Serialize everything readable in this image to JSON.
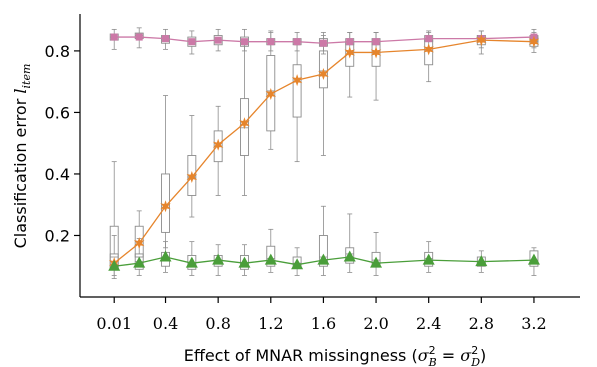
{
  "chart_data": {
    "type": "line",
    "title": "",
    "xlabel": "Effect of MNAR missingness (σ²_B = σ²_D)",
    "xlabel_parts": {
      "prefix": "Effect of MNAR missingness (",
      "sigma": "σ",
      "sub1": "B",
      "eq": " = ",
      "sub2": "D",
      "sup": "2",
      "suffix": ")"
    },
    "ylabel": "Classification error l_item",
    "ylabel_parts": {
      "text": "Classification error ",
      "var": "l",
      "sub": "item"
    },
    "xlim": [
      -0.25,
      3.55
    ],
    "ylim": [
      0.0,
      0.92
    ],
    "x_ticks": [
      "0.01",
      "0.4",
      "0.8",
      "1.2",
      "1.6",
      "2.0",
      "2.4",
      "2.8",
      "3.2"
    ],
    "x_tick_values": [
      0.01,
      0.4,
      0.8,
      1.2,
      1.6,
      2.0,
      2.4,
      2.8,
      3.2
    ],
    "y_ticks": [
      "0.2",
      "0.4",
      "0.6",
      "0.8"
    ],
    "y_tick_values": [
      0.2,
      0.4,
      0.6,
      0.8
    ],
    "x": [
      0.01,
      0.2,
      0.4,
      0.6,
      0.8,
      1.0,
      1.2,
      1.4,
      1.6,
      1.8,
      2.0,
      2.4,
      2.8,
      3.2
    ],
    "series": [
      {
        "color": "#cc79a7",
        "marker": "square",
        "values": [
          0.845,
          0.845,
          0.84,
          0.83,
          0.835,
          0.83,
          0.83,
          0.83,
          0.825,
          0.83,
          0.83,
          0.84,
          0.84,
          0.845
        ],
        "boxes": [
          [
            0.805,
            0.835,
            0.845,
            0.855,
            0.87
          ],
          [
            0.81,
            0.84,
            0.85,
            0.858,
            0.875
          ],
          [
            0.805,
            0.825,
            0.84,
            0.85,
            0.87
          ],
          [
            0.79,
            0.815,
            0.83,
            0.845,
            0.865
          ],
          [
            0.8,
            0.82,
            0.835,
            0.85,
            0.87
          ],
          [
            0.8,
            0.815,
            0.83,
            0.845,
            0.87
          ],
          [
            0.8,
            0.82,
            0.83,
            0.84,
            0.865
          ],
          [
            0.8,
            0.82,
            0.83,
            0.84,
            0.86
          ],
          [
            0.79,
            0.815,
            0.825,
            0.84,
            0.86
          ],
          [
            0.795,
            0.82,
            0.83,
            0.84,
            0.86
          ],
          [
            0.8,
            0.82,
            0.83,
            0.84,
            0.86
          ],
          [
            0.81,
            0.83,
            0.84,
            0.85,
            0.865
          ],
          [
            0.81,
            0.83,
            0.84,
            0.85,
            0.865
          ],
          [
            0.81,
            0.83,
            0.84,
            0.85,
            0.87
          ]
        ]
      },
      {
        "color": "#e6852c",
        "marker": "star",
        "values": [
          0.11,
          0.175,
          0.295,
          0.39,
          0.495,
          0.565,
          0.66,
          0.705,
          0.725,
          0.795,
          0.795,
          0.805,
          0.835,
          0.83
        ],
        "boxes": [
          [
            0.06,
            0.09,
            0.13,
            0.23,
            0.44
          ],
          [
            0.1,
            0.13,
            0.17,
            0.23,
            0.28
          ],
          [
            0.16,
            0.21,
            0.29,
            0.4,
            0.655
          ],
          [
            0.26,
            0.33,
            0.39,
            0.46,
            0.59
          ],
          [
            0.33,
            0.44,
            0.5,
            0.54,
            0.62
          ],
          [
            0.33,
            0.46,
            0.55,
            0.645,
            0.82
          ],
          [
            0.48,
            0.54,
            0.67,
            0.785,
            0.86
          ],
          [
            0.44,
            0.585,
            0.7,
            0.755,
            0.82
          ],
          [
            0.46,
            0.68,
            0.735,
            0.8,
            0.85
          ],
          [
            0.65,
            0.75,
            0.8,
            0.83,
            0.86
          ],
          [
            0.64,
            0.75,
            0.8,
            0.83,
            0.86
          ],
          [
            0.7,
            0.755,
            0.8,
            0.835,
            0.86
          ],
          [
            0.79,
            0.82,
            0.835,
            0.85,
            0.865
          ],
          [
            0.795,
            0.815,
            0.83,
            0.845,
            0.86
          ]
        ]
      },
      {
        "color": "#4a9e3a",
        "marker": "triangle",
        "values": [
          0.1,
          0.11,
          0.13,
          0.11,
          0.12,
          0.11,
          0.12,
          0.105,
          0.12,
          0.13,
          0.11,
          0.12,
          0.115,
          0.12
        ],
        "boxes": [
          [
            0.07,
            0.09,
            0.105,
            0.14,
            0.2
          ],
          [
            0.07,
            0.09,
            0.115,
            0.14,
            0.19
          ],
          [
            0.08,
            0.1,
            0.13,
            0.145,
            0.18
          ],
          [
            0.07,
            0.09,
            0.11,
            0.135,
            0.18
          ],
          [
            0.07,
            0.1,
            0.12,
            0.135,
            0.17
          ],
          [
            0.07,
            0.09,
            0.11,
            0.135,
            0.17
          ],
          [
            0.08,
            0.1,
            0.125,
            0.165,
            0.22
          ],
          [
            0.07,
            0.095,
            0.11,
            0.13,
            0.16
          ],
          [
            0.07,
            0.1,
            0.13,
            0.2,
            0.295
          ],
          [
            0.08,
            0.11,
            0.14,
            0.16,
            0.27
          ],
          [
            0.07,
            0.1,
            0.12,
            0.145,
            0.21
          ],
          [
            0.08,
            0.1,
            0.125,
            0.145,
            0.18
          ],
          [
            0.08,
            0.1,
            0.115,
            0.13,
            0.15
          ],
          [
            0.07,
            0.1,
            0.12,
            0.15,
            0.16
          ]
        ]
      }
    ],
    "grid": false,
    "legend": "none"
  }
}
